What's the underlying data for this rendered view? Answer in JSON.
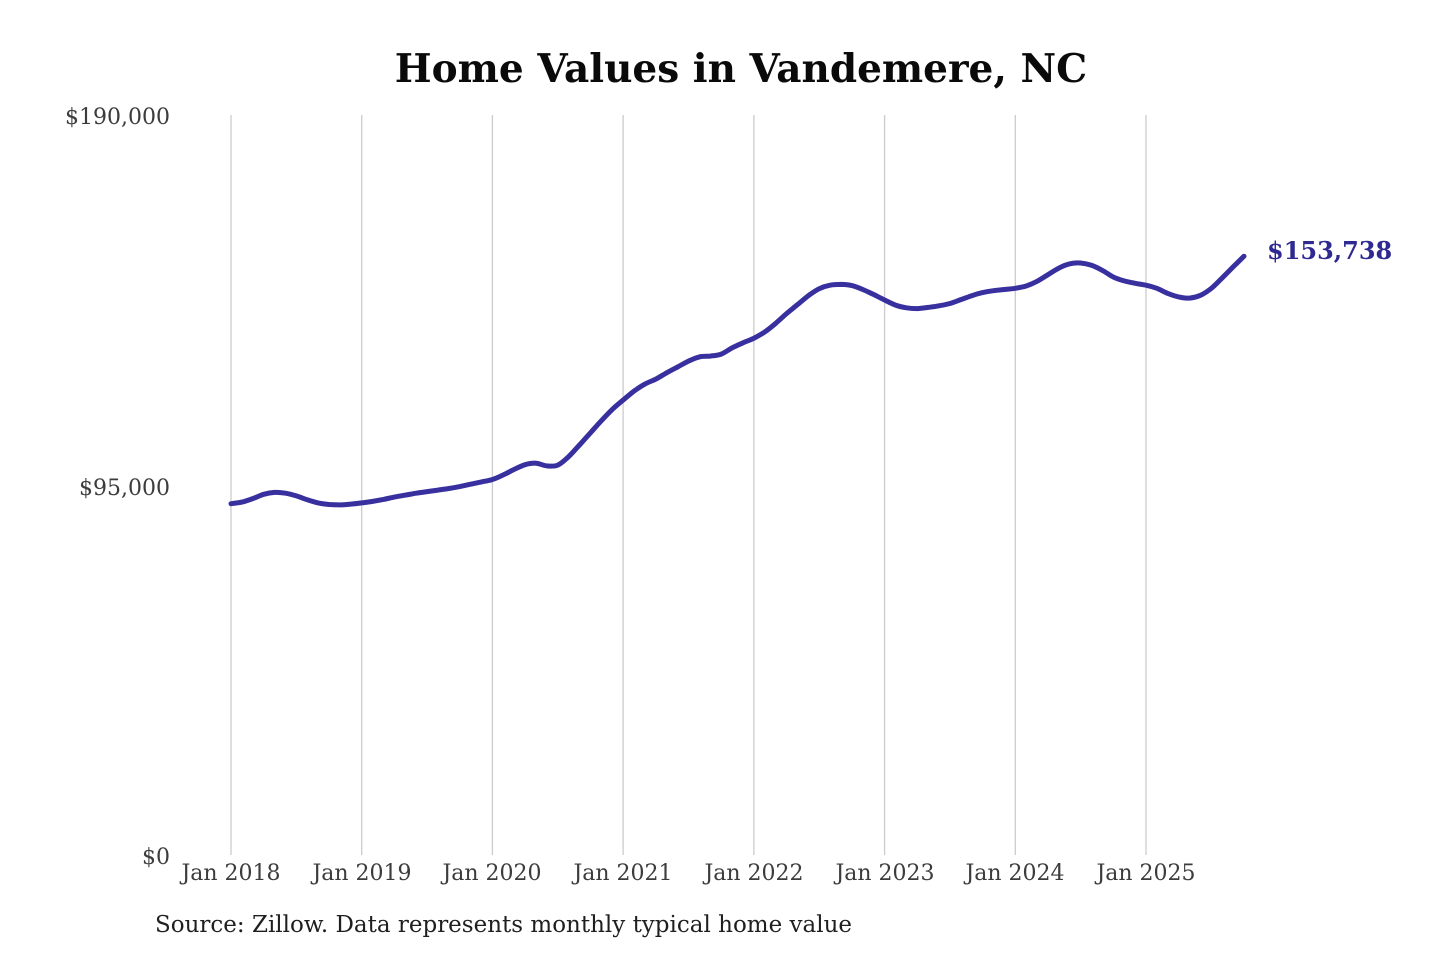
{
  "title": "Home Values in Vandemere, NC",
  "source_note": "Source: Zillow. Data represents monthly typical home value",
  "colors": {
    "line": "#38309e",
    "end_label": "#2f2a92",
    "gridline": "#cccccc",
    "tick_label": "#3c3c3c",
    "title": "#0a0a0a",
    "source": "#1f1f1f"
  },
  "chart_data": {
    "type": "line",
    "title": "Home Values in Vandemere, NC",
    "xlabel": "",
    "ylabel": "",
    "ylim": [
      0,
      190000
    ],
    "y_tick_labels": [
      "$190,000",
      "$95,000",
      "$0"
    ],
    "y_tick_values": [
      190000,
      95000,
      0
    ],
    "x_tick_labels": [
      "Jan 2018",
      "Jan 2019",
      "Jan 2020",
      "Jan 2021",
      "Jan 2022",
      "Jan 2023",
      "Jan 2024",
      "Jan 2025"
    ],
    "x_tick_month_indices": [
      0,
      12,
      24,
      36,
      48,
      60,
      72,
      84
    ],
    "grid": "vertical-only",
    "legend": "none",
    "frequency": "monthly",
    "x_start_month": "2018-01",
    "x_end_month": "2025-10",
    "end_value": 153738,
    "end_label": "$153,738",
    "series": [
      {
        "name": "Typical home value",
        "values": [
          90200,
          90600,
          91500,
          92600,
          93100,
          92900,
          92200,
          91200,
          90400,
          90000,
          89900,
          90100,
          90400,
          90800,
          91300,
          91900,
          92400,
          92900,
          93300,
          93700,
          94100,
          94600,
          95200,
          95800,
          96400,
          97600,
          99000,
          100200,
          100600,
          99900,
          100100,
          102300,
          105300,
          108400,
          111500,
          114400,
          116800,
          119100,
          120900,
          122200,
          123800,
          125300,
          126800,
          127900,
          128100,
          128600,
          130200,
          131500,
          132700,
          134300,
          136500,
          139000,
          141300,
          143600,
          145400,
          146300,
          146500,
          146200,
          145200,
          143900,
          142500,
          141200,
          140500,
          140300,
          140600,
          141000,
          141600,
          142600,
          143600,
          144400,
          144900,
          145200,
          145500,
          146100,
          147300,
          149000,
          150700,
          151800,
          152000,
          151400,
          150100,
          148400,
          147400,
          146800,
          146300,
          145500,
          144200,
          143300,
          143000,
          143700,
          145500,
          148200,
          151000,
          153738
        ]
      }
    ]
  }
}
